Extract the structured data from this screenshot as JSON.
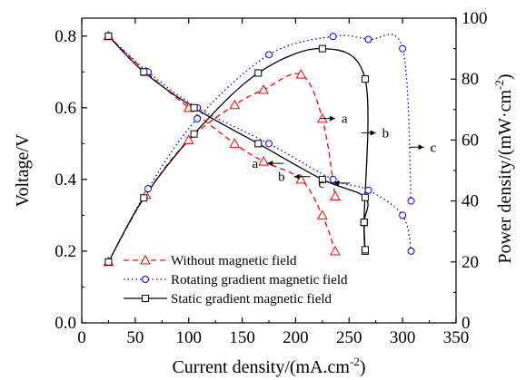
{
  "chart_data": {
    "type": "line",
    "xlabel": "Current density/(mA.cm",
    "xlabel_sup": "-2",
    "xlabel_end": ")",
    "ylabel": "Voltage/V",
    "y2label": "Power density/(mW·cm",
    "y2label_sup": "-2",
    "y2label_end": ")",
    "xlim": [
      0,
      350
    ],
    "ylim": [
      0.0,
      0.85
    ],
    "y2lim": [
      0,
      100
    ],
    "xticks": [
      "0",
      "50",
      "100",
      "150",
      "200",
      "250",
      "300",
      "350"
    ],
    "yticks": [
      "0.0",
      "0.2",
      "0.4",
      "0.6",
      "0.8"
    ],
    "y2ticks": [
      "0",
      "20",
      "40",
      "60",
      "80",
      "100"
    ],
    "colors": {
      "a": "#ff0000",
      "b": "#0000ff",
      "c": "#000000"
    },
    "series": [
      {
        "name": "Without magnetic field",
        "key": "a",
        "marker": "triangle",
        "line": "dashed",
        "voltage": {
          "x": [
            25,
            60,
            100,
            143,
            170,
            205,
            225,
            237
          ],
          "y": [
            0.8,
            0.7,
            0.6,
            0.5,
            0.45,
            0.4,
            0.3,
            0.2
          ]
        },
        "power": {
          "x": [
            25,
            60,
            100,
            143,
            170,
            205,
            225,
            237
          ],
          "y": [
            20,
            42,
            60,
            71.5,
            76.5,
            81.5,
            67,
            41.5
          ]
        }
      },
      {
        "name": "Rotating gradient magnetic field",
        "key": "b",
        "marker": "circle",
        "line": "dotted",
        "voltage": {
          "x": [
            25,
            62,
            108,
            175,
            235,
            268,
            300,
            308
          ],
          "y": [
            0.8,
            0.7,
            0.6,
            0.5,
            0.4,
            0.37,
            0.3,
            0.2
          ]
        },
        "power": {
          "x": [
            25,
            62,
            108,
            175,
            235,
            268,
            300,
            308
          ],
          "y": [
            20,
            44,
            67,
            88,
            94,
            93,
            90,
            40
          ]
        }
      },
      {
        "name": "Static gradient magnetic field",
        "key": "c",
        "marker": "square",
        "line": "solid",
        "voltage": {
          "x": [
            25,
            58,
            105,
            165,
            225,
            265,
            264,
            265
          ],
          "y": [
            0.8,
            0.7,
            0.6,
            0.5,
            0.4,
            0.35,
            0.28,
            0.2
          ]
        },
        "power": {
          "x": [
            25,
            58,
            105,
            165,
            225,
            265,
            264,
            265
          ],
          "y": [
            20,
            41,
            62,
            82,
            90,
            80,
            33,
            24
          ]
        }
      }
    ],
    "annotations": [
      {
        "label": "a",
        "side": "power",
        "x": 242,
        "y": 0.57
      },
      {
        "label": "b",
        "side": "power",
        "x": 280,
        "y": 0.53
      },
      {
        "label": "c",
        "side": "power",
        "x": 325,
        "y": 0.49
      },
      {
        "label": "a",
        "side": "voltage",
        "x": 165,
        "y": 0.445
      },
      {
        "label": "b",
        "side": "voltage",
        "x": 190,
        "y": 0.408
      },
      {
        "label": "c",
        "side": "voltage",
        "x": 227,
        "y": 0.39
      }
    ]
  }
}
